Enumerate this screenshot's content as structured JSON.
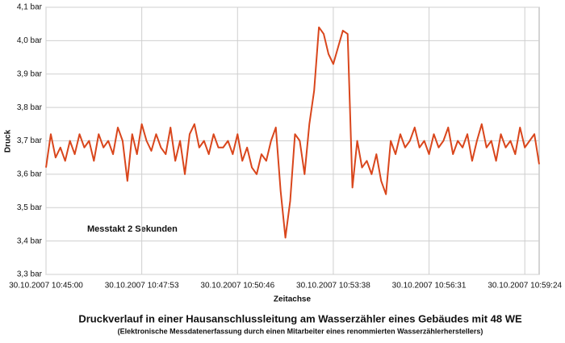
{
  "chart_data": {
    "type": "line",
    "title": "Druckverlauf in einer Hausanschlussleitung am Wasserzähler eines Gebäudes mit 48 WE",
    "subtitle": "(Elektronische Messdatenerfassung durch einen Mitarbeiter eines renommierten Wasserzählerherstellers)",
    "x_label": "Zeitachse",
    "y_label": "Druck",
    "annotations": [
      "Messtakt 2 Sekunden"
    ],
    "categories": [
      "30.10.2007 10:45:00",
      null,
      null,
      null,
      null,
      null,
      null,
      null,
      null,
      null,
      null,
      null,
      null,
      null,
      null,
      null,
      null,
      null,
      null,
      null,
      "30.10.2007 10:47:53",
      null,
      null,
      null,
      null,
      null,
      null,
      null,
      null,
      null,
      null,
      null,
      null,
      null,
      null,
      null,
      null,
      null,
      null,
      null,
      "30.10.2007 10:50:46",
      null,
      null,
      null,
      null,
      null,
      null,
      null,
      null,
      null,
      null,
      null,
      null,
      null,
      null,
      null,
      null,
      null,
      null,
      null,
      "30.10.2007 10:53:38",
      null,
      null,
      null,
      null,
      null,
      null,
      null,
      null,
      null,
      null,
      null,
      null,
      null,
      null,
      null,
      null,
      null,
      null,
      null,
      "30.10.2007 10:56:31",
      null,
      null,
      null,
      null,
      null,
      null,
      null,
      null,
      null,
      null,
      null,
      null,
      null,
      null,
      null,
      null,
      null,
      null,
      null,
      "30.10.2007 10:59:24",
      null,
      null,
      null
    ],
    "values": [
      3.62,
      3.72,
      3.65,
      3.68,
      3.64,
      3.7,
      3.66,
      3.72,
      3.68,
      3.7,
      3.64,
      3.72,
      3.68,
      3.7,
      3.66,
      3.74,
      3.7,
      3.58,
      3.72,
      3.66,
      3.75,
      3.7,
      3.67,
      3.72,
      3.68,
      3.66,
      3.74,
      3.64,
      3.7,
      3.6,
      3.72,
      3.75,
      3.68,
      3.7,
      3.66,
      3.72,
      3.68,
      3.68,
      3.7,
      3.66,
      3.72,
      3.64,
      3.68,
      3.62,
      3.6,
      3.66,
      3.64,
      3.7,
      3.74,
      3.55,
      3.41,
      3.52,
      3.72,
      3.7,
      3.6,
      3.75,
      3.85,
      4.04,
      4.02,
      3.96,
      3.93,
      3.98,
      4.03,
      4.02,
      3.56,
      3.7,
      3.62,
      3.64,
      3.6,
      3.66,
      3.58,
      3.54,
      3.7,
      3.66,
      3.72,
      3.68,
      3.7,
      3.74,
      3.68,
      3.7,
      3.66,
      3.72,
      3.68,
      3.7,
      3.74,
      3.66,
      3.7,
      3.68,
      3.72,
      3.64,
      3.7,
      3.75,
      3.68,
      3.7,
      3.64,
      3.72,
      3.68,
      3.7,
      3.66,
      3.74,
      3.68,
      3.7,
      3.72,
      3.63
    ],
    "color": "#d9461c",
    "ylim": [
      3.3,
      4.1
    ],
    "yticks": [
      {
        "value": 3.3,
        "label": "3,3 bar"
      },
      {
        "value": 3.4,
        "label": "3,4 bar"
      },
      {
        "value": 3.5,
        "label": "3,5 bar"
      },
      {
        "value": 3.6,
        "label": "3,6 bar"
      },
      {
        "value": 3.7,
        "label": "3,7 bar"
      },
      {
        "value": 3.8,
        "label": "3,8 bar"
      },
      {
        "value": 3.9,
        "label": "3,9 bar"
      },
      {
        "value": 4.0,
        "label": "4,0 bar"
      },
      {
        "value": 4.1,
        "label": "4,1 bar"
      }
    ],
    "grid": true
  }
}
